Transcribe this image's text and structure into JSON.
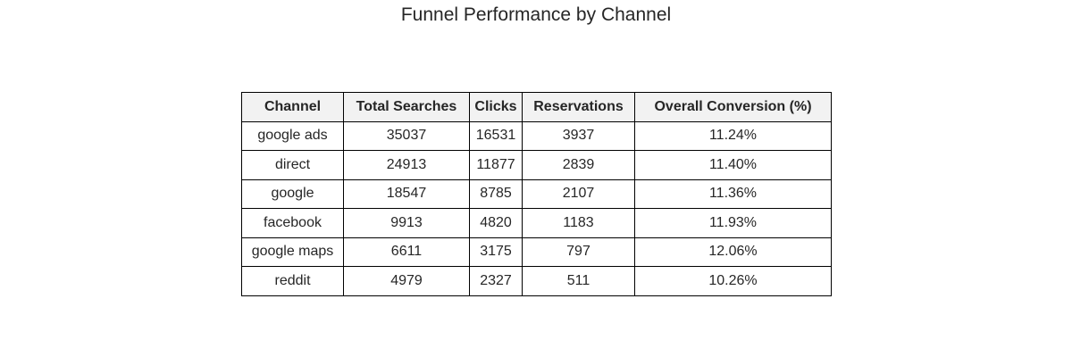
{
  "chart_data": {
    "type": "table",
    "title": "Funnel Performance by Channel",
    "columns": [
      "Channel",
      "Total Searches",
      "Clicks",
      "Reservations",
      "Overall Conversion (%)"
    ],
    "rows": [
      [
        "google ads",
        "35037",
        "16531",
        "3937",
        "11.24%"
      ],
      [
        "direct",
        "24913",
        "11877",
        "2839",
        "11.40%"
      ],
      [
        "google",
        "18547",
        "8785",
        "2107",
        "11.36%"
      ],
      [
        "facebook",
        "9913",
        "4820",
        "1183",
        "11.93%"
      ],
      [
        "google maps",
        "6611",
        "3175",
        "797",
        "12.06%"
      ],
      [
        "reddit",
        "4979",
        "2327",
        "511",
        "10.26%"
      ]
    ],
    "header_background": "#f2f2f2",
    "border_color": "#000000"
  }
}
